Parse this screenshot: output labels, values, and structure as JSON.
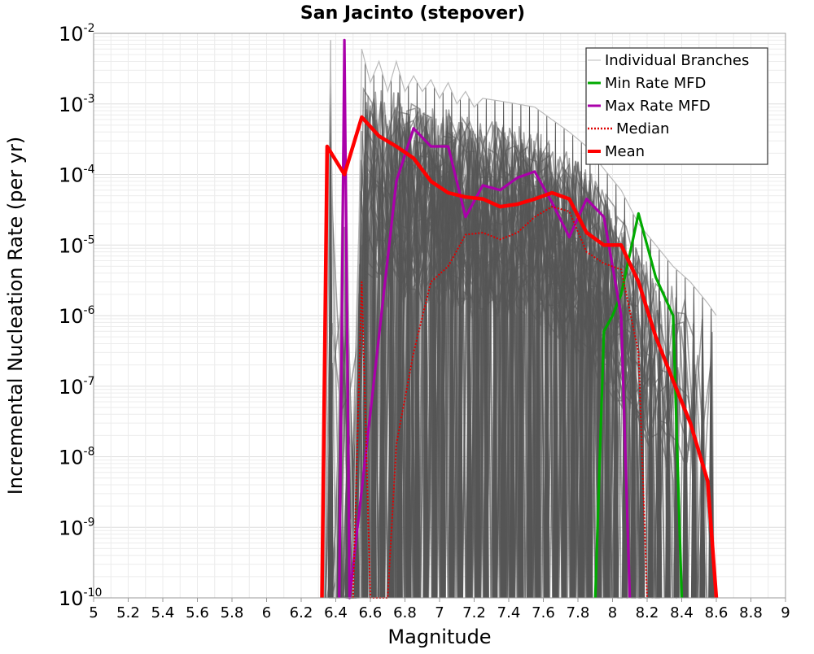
{
  "chart_data": {
    "type": "line",
    "title": "San Jacinto (stepover)",
    "xlabel": "Magnitude",
    "ylabel": "Incremental Nucleation Rate (per yr)",
    "xlim": [
      5,
      9
    ],
    "ylim": [
      1e-10,
      0.01
    ],
    "yscale": "log",
    "grid": true,
    "legend_position": "top-right",
    "x_ticks": [
      "5",
      "5.2",
      "5.4",
      "5.6",
      "5.8",
      "6",
      "6.2",
      "6.4",
      "6.6",
      "6.8",
      "7",
      "7.2",
      "7.4",
      "7.6",
      "7.8",
      "8",
      "8.2",
      "8.4",
      "8.6",
      "8.8",
      "9"
    ],
    "y_ticks": [
      {
        "base": "10",
        "exp": "-10"
      },
      {
        "base": "10",
        "exp": "-9"
      },
      {
        "base": "10",
        "exp": "-8"
      },
      {
        "base": "10",
        "exp": "-7"
      },
      {
        "base": "10",
        "exp": "-6"
      },
      {
        "base": "10",
        "exp": "-5"
      },
      {
        "base": "10",
        "exp": "-4"
      },
      {
        "base": "10",
        "exp": "-3"
      },
      {
        "base": "10",
        "exp": "-2"
      }
    ],
    "series": [
      {
        "name": "Individual Branches",
        "color": "#555555",
        "style": "thin-envelope",
        "upper": [
          [
            6.33,
            1e-10
          ],
          [
            6.37,
            0.008
          ],
          [
            6.4,
            1e-10
          ],
          [
            6.45,
            0.008
          ],
          [
            6.5,
            1e-10
          ],
          [
            6.55,
            0.006
          ],
          [
            6.6,
            0.002
          ],
          [
            6.65,
            0.004
          ],
          [
            6.7,
            0.0015
          ],
          [
            6.75,
            0.004
          ],
          [
            6.8,
            0.0015
          ],
          [
            6.85,
            0.0025
          ],
          [
            6.9,
            0.0015
          ],
          [
            6.95,
            0.0022
          ],
          [
            7.0,
            0.0012
          ],
          [
            7.05,
            0.002
          ],
          [
            7.1,
            0.001
          ],
          [
            7.15,
            0.0015
          ],
          [
            7.2,
            0.0009
          ],
          [
            7.25,
            0.0012
          ],
          [
            7.35,
            0.0011
          ],
          [
            7.45,
            0.001
          ],
          [
            7.55,
            0.0009
          ],
          [
            7.65,
            0.0006
          ],
          [
            7.75,
            0.0004
          ],
          [
            7.85,
            0.00025
          ],
          [
            7.95,
            0.00012
          ],
          [
            8.05,
            6e-05
          ],
          [
            8.15,
            2e-05
          ],
          [
            8.25,
            1e-05
          ],
          [
            8.35,
            5e-06
          ],
          [
            8.45,
            3e-06
          ],
          [
            8.55,
            1.5e-06
          ],
          [
            8.6,
            1e-06
          ]
        ],
        "spikes": [
          6.37,
          6.42,
          6.47,
          6.52,
          6.57,
          6.62,
          6.67,
          6.72,
          6.77,
          6.82,
          6.87,
          6.92,
          6.97,
          7.02,
          7.07,
          7.12,
          7.17,
          7.22,
          7.27,
          7.32,
          7.37,
          7.42,
          7.47,
          7.52,
          7.57,
          7.62,
          7.67,
          7.72,
          7.77,
          7.82,
          7.87,
          7.92,
          7.97,
          8.02,
          8.07,
          8.12,
          8.17,
          8.22,
          8.27,
          8.32,
          8.37,
          8.42,
          8.47,
          8.52,
          8.57
        ]
      },
      {
        "name": "Min Rate MFD",
        "color": "#00aa00",
        "x": [
          7.9,
          7.95,
          8.0,
          8.05,
          8.15,
          8.25,
          8.35,
          8.4
        ],
        "values": [
          1e-10,
          6e-07,
          1e-06,
          2e-06,
          2.8e-05,
          3.5e-06,
          1e-06,
          1e-10
        ]
      },
      {
        "name": "Max Rate MFD",
        "color": "#aa00aa",
        "x": [
          6.42,
          6.45,
          6.48,
          6.75,
          6.85,
          6.95,
          7.05,
          7.15,
          7.25,
          7.35,
          7.45,
          7.55,
          7.65,
          7.75,
          7.85,
          7.95,
          8.05,
          8.1
        ],
        "values": [
          1e-10,
          0.008,
          1e-10,
          8e-05,
          0.00045,
          0.00025,
          0.00025,
          2.5e-05,
          7e-05,
          6e-05,
          9e-05,
          0.00011,
          4e-05,
          1.3e-05,
          4.5e-05,
          2.5e-05,
          1e-06,
          1e-10
        ]
      },
      {
        "name": "Median",
        "color": "#dd0000",
        "x": [
          6.5,
          6.55,
          6.6,
          6.7,
          6.75,
          6.85,
          6.95,
          7.05,
          7.15,
          7.25,
          7.35,
          7.45,
          7.55,
          7.65,
          7.75,
          7.85,
          7.95,
          8.05,
          8.15,
          8.2
        ],
        "values": [
          1e-10,
          3e-06,
          1e-10,
          1e-10,
          1.5e-08,
          3e-07,
          3e-06,
          5e-06,
          1.4e-05,
          1.5e-05,
          1.2e-05,
          1.5e-05,
          2.5e-05,
          3.5e-05,
          3e-05,
          8e-06,
          5.5e-06,
          4.5e-06,
          3e-07,
          1e-10
        ]
      },
      {
        "name": "Mean",
        "color": "#ff0000",
        "x": [
          6.32,
          6.35,
          6.45,
          6.55,
          6.65,
          6.75,
          6.85,
          6.95,
          7.05,
          7.15,
          7.25,
          7.35,
          7.45,
          7.55,
          7.65,
          7.75,
          7.85,
          7.95,
          8.05,
          8.15,
          8.25,
          8.35,
          8.45,
          8.55,
          8.6
        ],
        "values": [
          1e-10,
          0.00025,
          0.0001,
          0.00065,
          0.00035,
          0.00025,
          0.00017,
          8e-05,
          5.5e-05,
          4.8e-05,
          4.5e-05,
          3.5e-05,
          3.8e-05,
          4.5e-05,
          5.5e-05,
          4.5e-05,
          1.5e-05,
          1e-05,
          1e-05,
          3e-06,
          5e-07,
          1.2e-07,
          3e-08,
          4.5e-09,
          1e-10
        ]
      }
    ],
    "legend": [
      {
        "label": "Individual Branches",
        "color": "#bbbbbb",
        "style": "thin"
      },
      {
        "label": "Min Rate MFD",
        "color": "#00aa00",
        "style": "solid"
      },
      {
        "label": "Max Rate MFD",
        "color": "#aa00aa",
        "style": "solid"
      },
      {
        "label": "Median",
        "color": "#dd0000",
        "style": "dotted"
      },
      {
        "label": "Mean",
        "color": "#ff0000",
        "style": "thick"
      }
    ]
  }
}
